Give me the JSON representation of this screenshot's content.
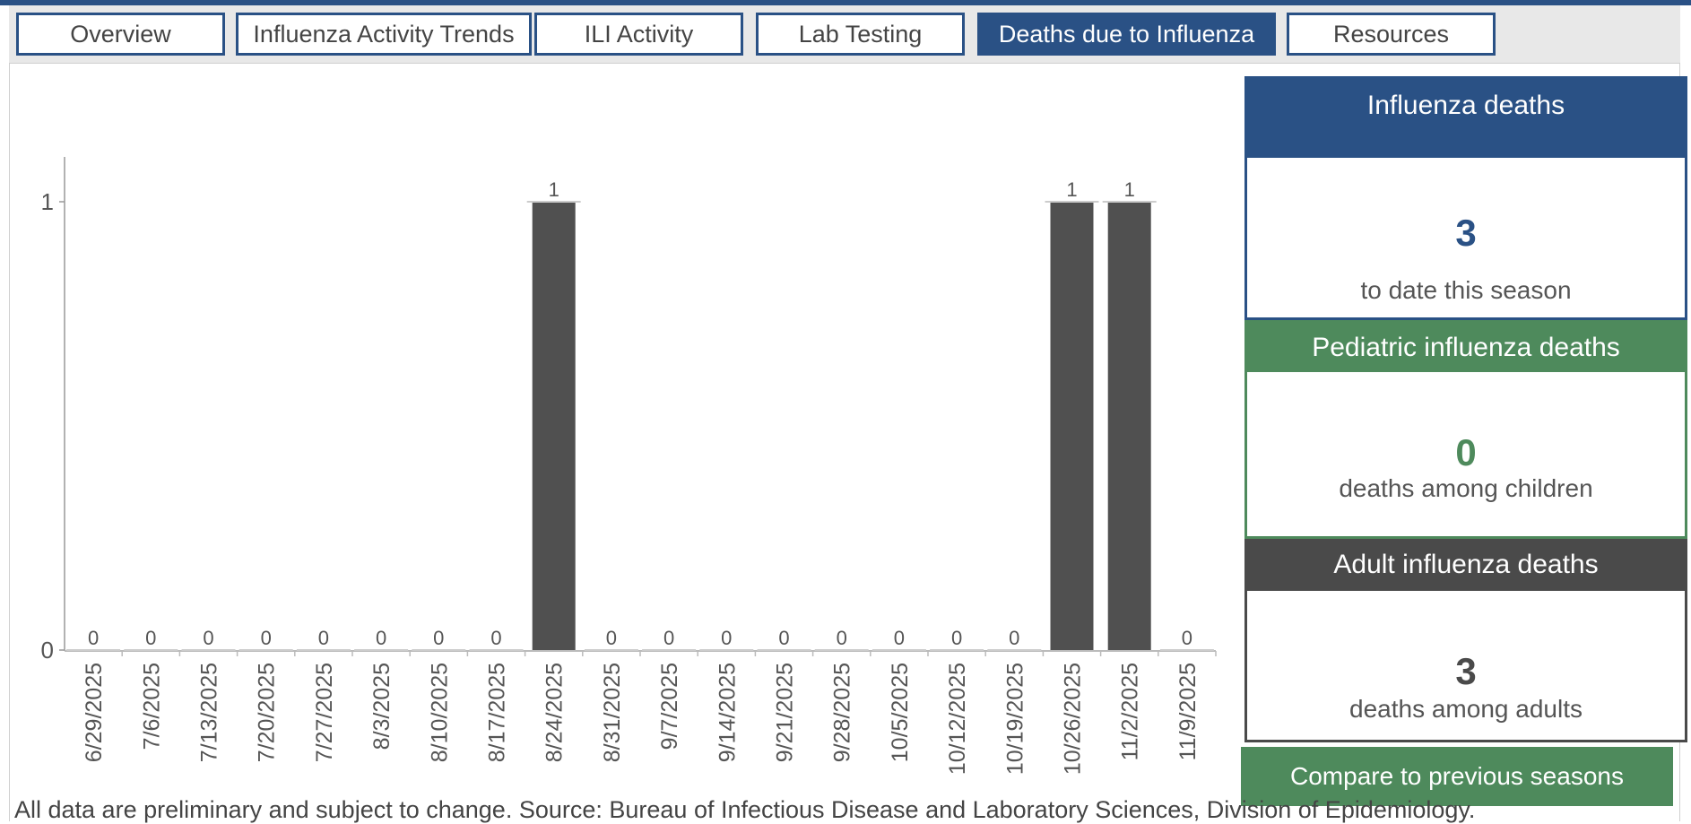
{
  "tabs": [
    {
      "label": "Overview",
      "active": false
    },
    {
      "label": "Influenza Activity Trends",
      "active": false
    },
    {
      "label": "ILI Activity",
      "active": false
    },
    {
      "label": "Lab Testing",
      "active": false
    },
    {
      "label": "Deaths due to Influenza",
      "active": true
    },
    {
      "label": "Resources",
      "active": false
    }
  ],
  "cards": {
    "total": {
      "title": "Influenza deaths",
      "value": "3",
      "caption": "to date this season",
      "color": "#2a5185"
    },
    "pediatric": {
      "title": "Pediatric influenza deaths",
      "value": "0",
      "caption": "deaths among children",
      "color": "#4e8a5c"
    },
    "adult": {
      "title": "Adult influenza deaths",
      "value": "3",
      "caption": "deaths among adults",
      "color": "#4a4a4a"
    }
  },
  "compare_button": "Compare to previous seasons",
  "footnote": "All data are preliminary and subject to change. Source: Bureau of Infectious Disease and Laboratory Sciences, Division of Epidemiology.",
  "chart_data": {
    "type": "bar",
    "categories": [
      "6/29/2025",
      "7/6/2025",
      "7/13/2025",
      "7/20/2025",
      "7/27/2025",
      "8/3/2025",
      "8/10/2025",
      "8/17/2025",
      "8/24/2025",
      "8/31/2025",
      "9/7/2025",
      "9/14/2025",
      "9/21/2025",
      "9/28/2025",
      "10/5/2025",
      "10/12/2025",
      "10/19/2025",
      "10/26/2025",
      "11/2/2025",
      "11/9/2025"
    ],
    "values": [
      0,
      0,
      0,
      0,
      0,
      0,
      0,
      0,
      1,
      0,
      0,
      0,
      0,
      0,
      0,
      0,
      0,
      1,
      1,
      0
    ],
    "yticks": [
      0,
      1
    ],
    "ylim": [
      0,
      1
    ],
    "bar_color": "#505050",
    "title": "",
    "xlabel": "",
    "ylabel": ""
  }
}
